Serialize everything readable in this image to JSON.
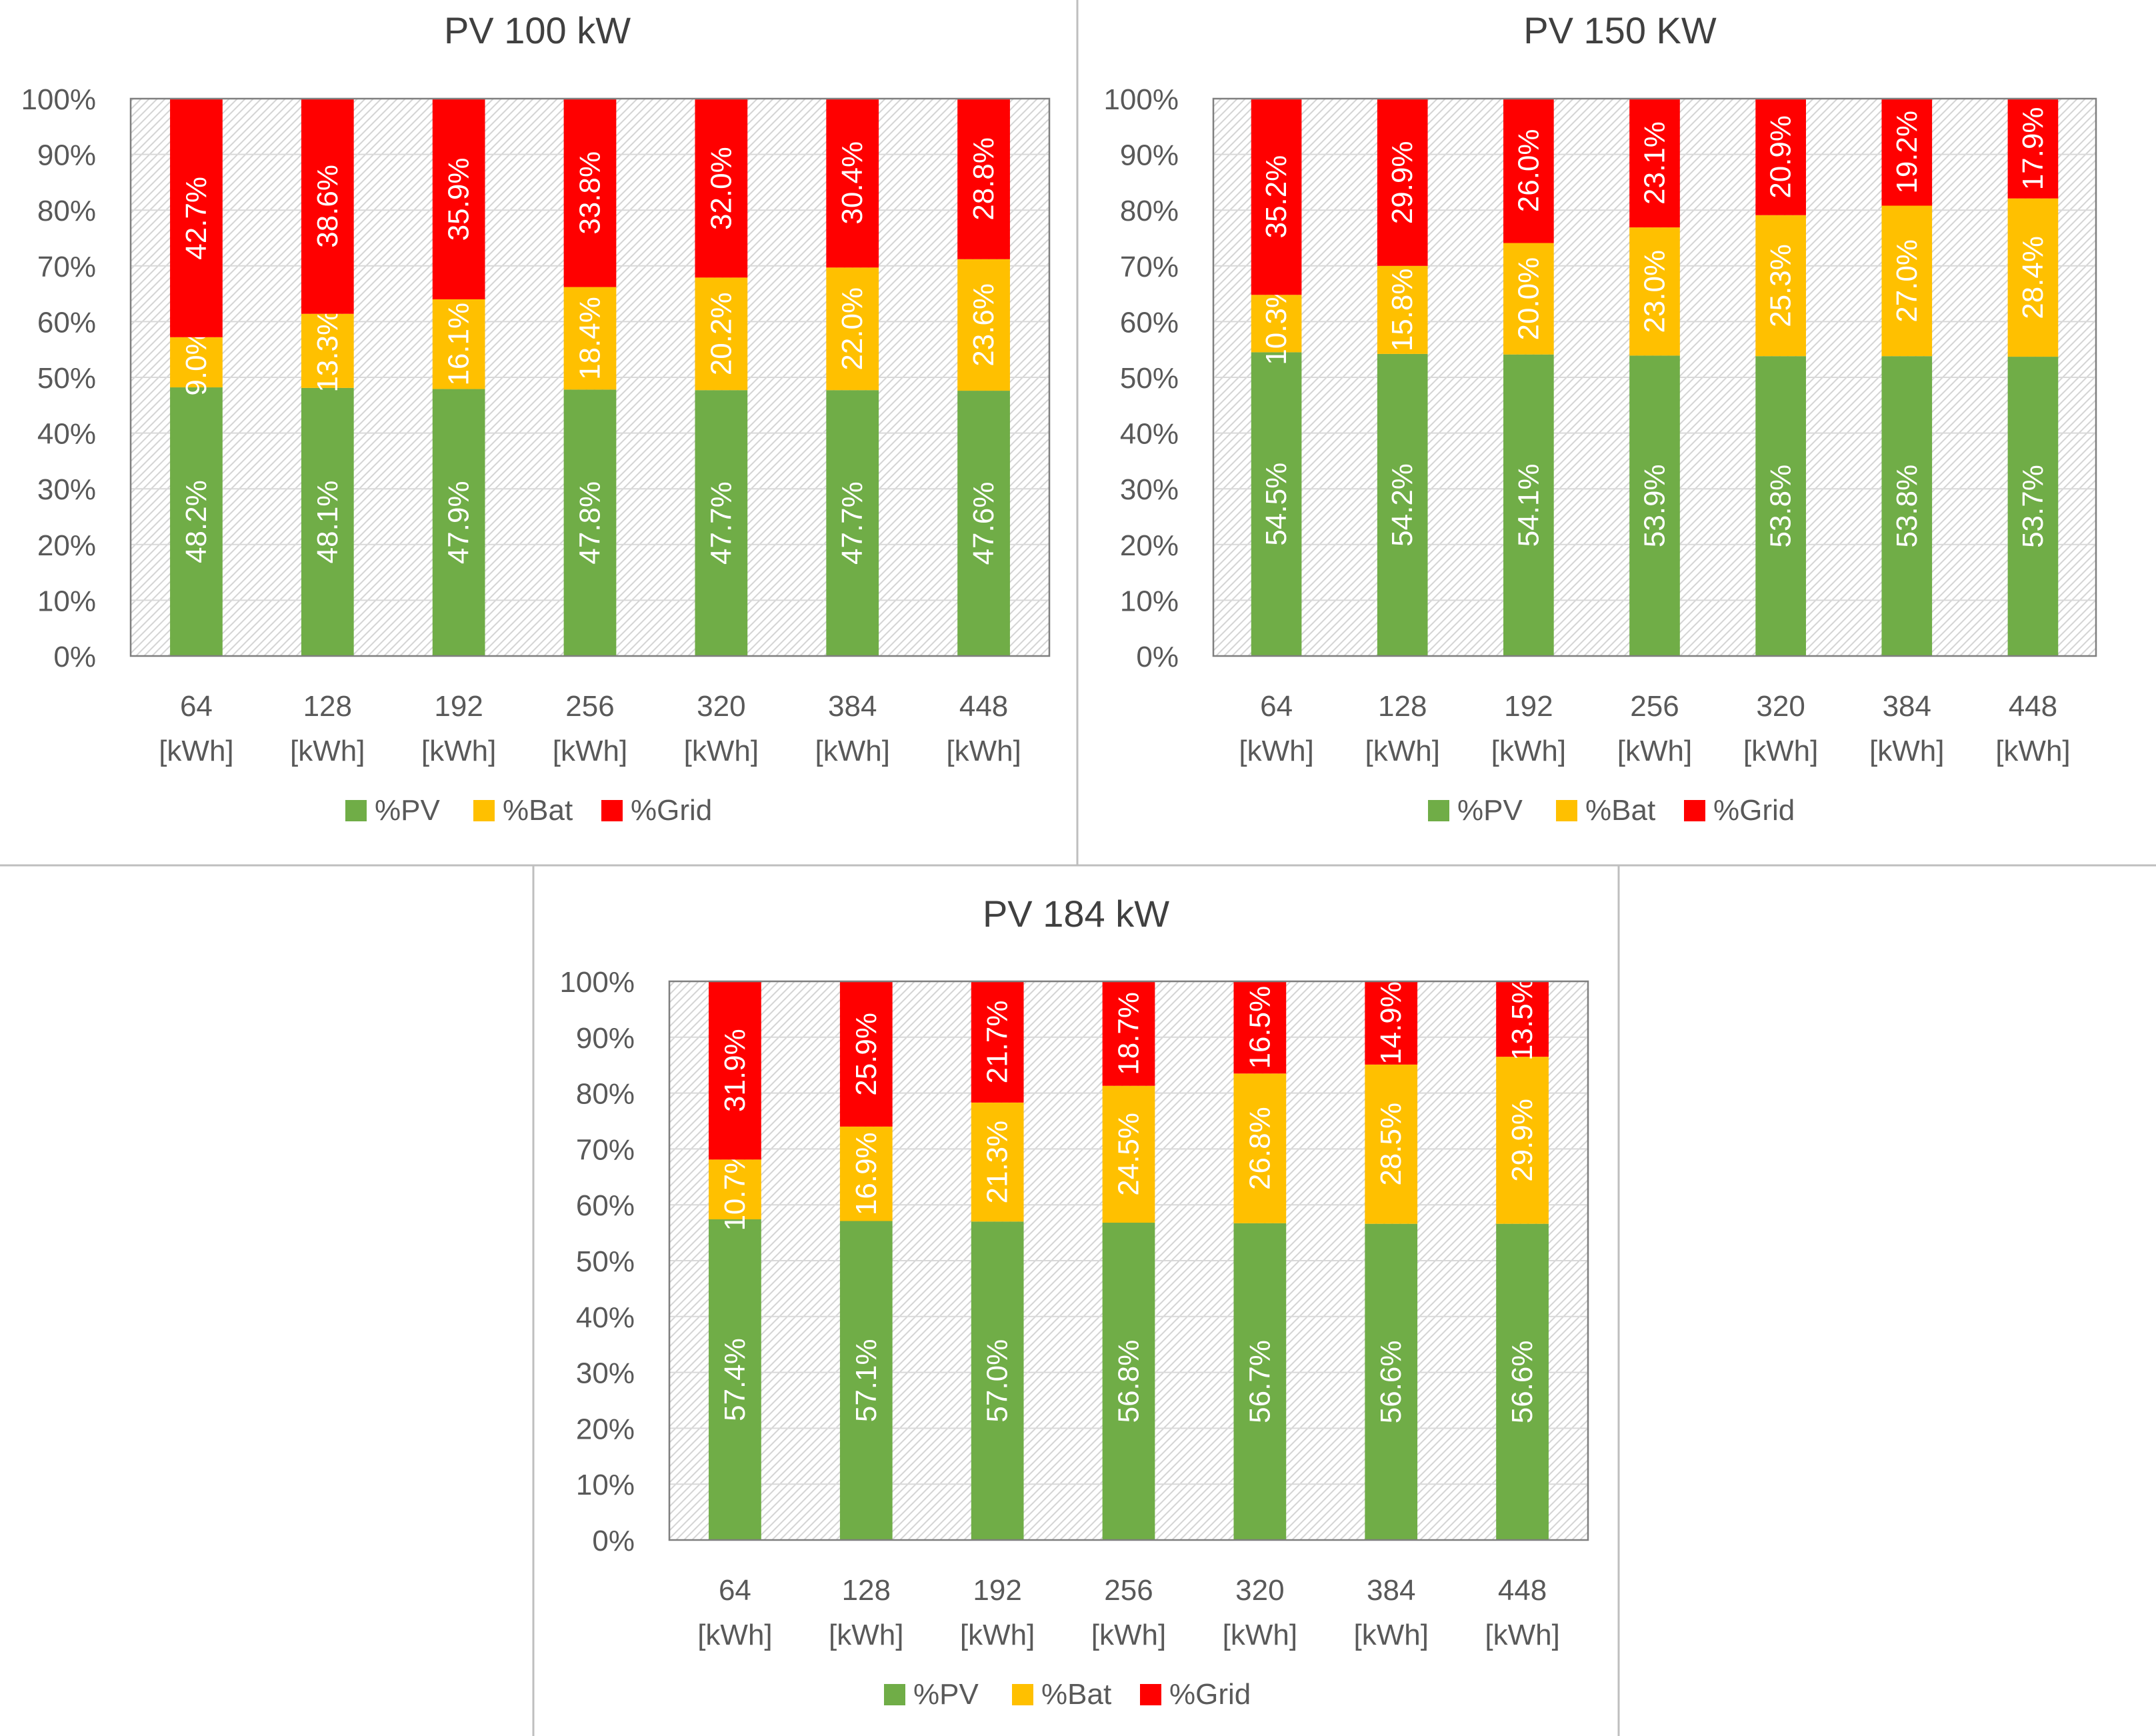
{
  "chart_data": [
    {
      "type": "bar",
      "stacked": true,
      "title": "PV 100 kW",
      "categories": [
        "64",
        "128",
        "192",
        "256",
        "320",
        "384",
        "448"
      ],
      "category_unit": "[kWh]",
      "y_ticks": [
        "0%",
        "10%",
        "20%",
        "30%",
        "40%",
        "50%",
        "60%",
        "70%",
        "80%",
        "90%",
        "100%"
      ],
      "ylim": [
        0,
        100
      ],
      "xlabel": "",
      "ylabel": "",
      "series": [
        {
          "name": "%PV",
          "color": "#70ad47",
          "values": [
            48.2,
            48.1,
            47.9,
            47.8,
            47.7,
            47.7,
            47.6
          ],
          "labels": [
            "48.2%",
            "48.1%",
            "47.9%",
            "47.8%",
            "47.7%",
            "47.7%",
            "47.6%"
          ]
        },
        {
          "name": "%Bat",
          "color": "#ffc000",
          "values": [
            9.0,
            13.3,
            16.1,
            18.4,
            20.2,
            22.0,
            23.6
          ],
          "labels": [
            "9.0%",
            "13.3%",
            "16.1%",
            "18.4%",
            "20.2%",
            "22.0%",
            "23.6%"
          ]
        },
        {
          "name": "%Grid",
          "color": "#ff0000",
          "values": [
            42.7,
            38.6,
            35.9,
            33.8,
            32.0,
            30.4,
            28.8
          ],
          "labels": [
            "42.7%",
            "38.6%",
            "35.9%",
            "33.8%",
            "32.0%",
            "30.4%",
            "28.8%"
          ]
        }
      ],
      "legend_position": "bottom"
    },
    {
      "type": "bar",
      "stacked": true,
      "title": "PV 150 KW",
      "categories": [
        "64",
        "128",
        "192",
        "256",
        "320",
        "384",
        "448"
      ],
      "category_unit": "[kWh]",
      "y_ticks": [
        "0%",
        "10%",
        "20%",
        "30%",
        "40%",
        "50%",
        "60%",
        "70%",
        "80%",
        "90%",
        "100%"
      ],
      "ylim": [
        0,
        100
      ],
      "xlabel": "",
      "ylabel": "",
      "series": [
        {
          "name": "%PV",
          "color": "#70ad47",
          "values": [
            54.5,
            54.2,
            54.1,
            53.9,
            53.8,
            53.8,
            53.7
          ],
          "labels": [
            "54.5%",
            "54.2%",
            "54.1%",
            "53.9%",
            "53.8%",
            "53.8%",
            "53.7%"
          ]
        },
        {
          "name": "%Bat",
          "color": "#ffc000",
          "values": [
            10.3,
            15.8,
            20.0,
            23.0,
            25.3,
            27.0,
            28.4
          ],
          "labels": [
            "10.3%",
            "15.8%",
            "20.0%",
            "23.0%",
            "25.3%",
            "27.0%",
            "28.4%"
          ]
        },
        {
          "name": "%Grid",
          "color": "#ff0000",
          "values": [
            35.2,
            29.9,
            26.0,
            23.1,
            20.9,
            19.2,
            17.9
          ],
          "labels": [
            "35.2%",
            "29.9%",
            "26.0%",
            "23.1%",
            "20.9%",
            "19.2%",
            "17.9%"
          ]
        }
      ],
      "legend_position": "bottom"
    },
    {
      "type": "bar",
      "stacked": true,
      "title": "PV 184 kW",
      "categories": [
        "64",
        "128",
        "192",
        "256",
        "320",
        "384",
        "448"
      ],
      "category_unit": "[kWh]",
      "y_ticks": [
        "0%",
        "10%",
        "20%",
        "30%",
        "40%",
        "50%",
        "60%",
        "70%",
        "80%",
        "90%",
        "100%"
      ],
      "ylim": [
        0,
        100
      ],
      "xlabel": "",
      "ylabel": "",
      "series": [
        {
          "name": "%PV",
          "color": "#70ad47",
          "values": [
            57.4,
            57.1,
            57.0,
            56.8,
            56.7,
            56.6,
            56.6
          ],
          "labels": [
            "57.4%",
            "57.1%",
            "57.0%",
            "56.8%",
            "56.7%",
            "56.6%",
            "56.6%"
          ]
        },
        {
          "name": "%Bat",
          "color": "#ffc000",
          "values": [
            10.7,
            16.9,
            21.3,
            24.5,
            26.8,
            28.5,
            29.9
          ],
          "labels": [
            "10.7%",
            "16.9%",
            "21.3%",
            "24.5%",
            "26.8%",
            "28.5%",
            "29.9%"
          ]
        },
        {
          "name": "%Grid",
          "color": "#ff0000",
          "values": [
            31.9,
            25.9,
            21.7,
            18.7,
            16.5,
            14.9,
            13.5
          ],
          "labels": [
            "31.9%",
            "25.9%",
            "21.7%",
            "18.7%",
            "16.5%",
            "14.9%",
            "13.5%"
          ]
        }
      ],
      "legend_position": "bottom"
    }
  ],
  "colors": {
    "frame": "#bfbfbf",
    "gridline": "#d9d9d9",
    "plot_border": "#7f7f7f",
    "hatch": "#d4d4d4",
    "text": "#595959",
    "title_text": "#404040",
    "bar_label": "#ffffff"
  }
}
